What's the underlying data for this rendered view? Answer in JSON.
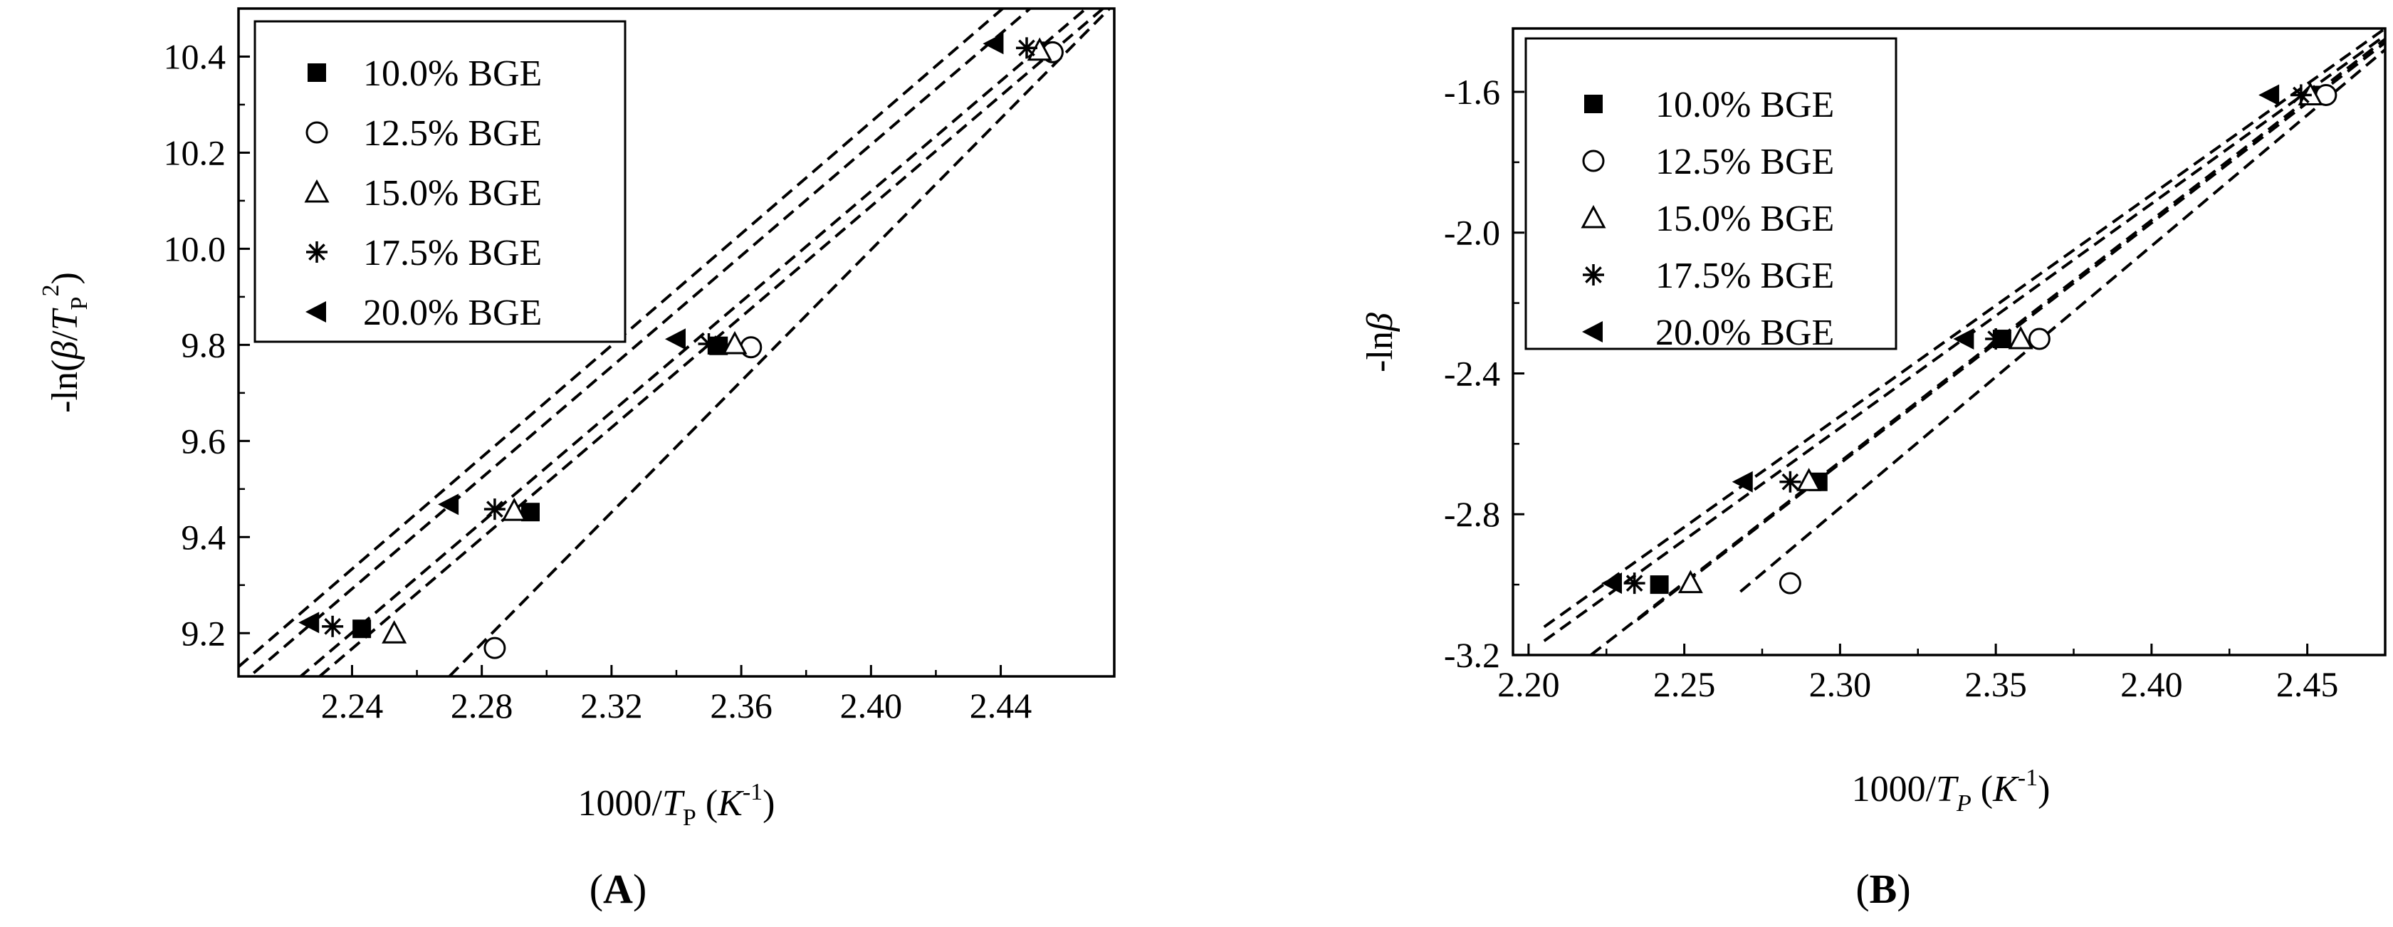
{
  "chart_data": [
    {
      "type": "scatter",
      "panel_label": "A",
      "ylabel_parts": [
        "-ln(",
        "β",
        "/",
        "T",
        "P",
        "2",
        ")"
      ],
      "xlabel_parts": [
        "1000/",
        "T",
        "P",
        " (",
        "K",
        "-1",
        ")"
      ],
      "xlim": [
        2.205,
        2.475
      ],
      "ylim": [
        9.11,
        10.5
      ],
      "xticks": [
        "2.24",
        "2.28",
        "2.32",
        "2.36",
        "2.40",
        "2.44"
      ],
      "yticks": [
        "9.2",
        "9.4",
        "9.6",
        "9.8",
        "10.0",
        "10.2",
        "10.4"
      ],
      "legend_position": "top-left",
      "series": [
        {
          "name": "10.0% BGE",
          "marker": "square-filled",
          "points": [
            [
              2.243,
              9.209
            ],
            [
              2.295,
              9.452
            ],
            [
              2.353,
              9.798
            ],
            [
              2.454,
              10.412
            ]
          ],
          "fit": [
            [
              2.205,
              9.0
            ],
            [
              2.475,
              10.55
            ]
          ]
        },
        {
          "name": "12.5% BGE",
          "marker": "circle-open",
          "points": [
            [
              2.284,
              9.169
            ],
            [
              2.363,
              9.795
            ],
            [
              2.456,
              10.409
            ]
          ],
          "fit": [
            [
              2.27,
              9.11
            ],
            [
              2.475,
              10.51
            ]
          ]
        },
        {
          "name": "15.0% BGE",
          "marker": "triangle-open",
          "points": [
            [
              2.253,
              9.2
            ],
            [
              2.29,
              9.455
            ],
            [
              2.358,
              9.802
            ],
            [
              2.452,
              10.413
            ]
          ],
          "fit": [
            [
              2.23,
              9.11
            ],
            [
              2.475,
              10.52
            ]
          ]
        },
        {
          "name": "17.5% BGE",
          "marker": "asterisk",
          "points": [
            [
              2.234,
              9.214
            ],
            [
              2.284,
              9.458
            ],
            [
              2.35,
              9.802
            ],
            [
              2.448,
              10.418
            ]
          ],
          "fit": [
            [
              2.205,
              9.09
            ],
            [
              2.475,
              10.65
            ]
          ]
        },
        {
          "name": "20.0% BGE",
          "marker": "triangle-left-filled",
          "points": [
            [
              2.227,
              9.222
            ],
            [
              2.27,
              9.468
            ],
            [
              2.34,
              9.812
            ],
            [
              2.438,
              10.427
            ]
          ],
          "fit": [
            [
              2.205,
              9.13
            ],
            [
              2.475,
              10.7
            ]
          ]
        }
      ]
    },
    {
      "type": "scatter",
      "panel_label": "B",
      "ylabel_parts": [
        "-ln",
        "β"
      ],
      "xlabel_parts": [
        "1000/",
        "T",
        "P",
        " (",
        "K",
        "-1",
        ")"
      ],
      "xlim": [
        2.195,
        2.475
      ],
      "ylim": [
        -3.2,
        -1.42
      ],
      "xticks": [
        "2.20",
        "2.25",
        "2.30",
        "2.35",
        "2.40",
        "2.45"
      ],
      "yticks": [
        "-3.2",
        "-2.8",
        "-2.4",
        "-2.0",
        "-1.6"
      ],
      "legend_position": "top-left",
      "series": [
        {
          "name": "10.0% BGE",
          "marker": "square-filled",
          "points": [
            [
              2.242,
              -3.0
            ],
            [
              2.293,
              -2.708
            ],
            [
              2.352,
              -2.302
            ],
            [
              2.455,
              -1.609
            ]
          ],
          "fit": [
            [
              2.235,
              -3.1
            ],
            [
              2.475,
              -1.46
            ]
          ]
        },
        {
          "name": "12.5% BGE",
          "marker": "circle-open",
          "points": [
            [
              2.284,
              -2.996
            ],
            [
              2.364,
              -2.302
            ],
            [
              2.456,
              -1.609
            ]
          ],
          "fit": [
            [
              2.268,
              -3.02
            ],
            [
              2.475,
              -1.48
            ]
          ]
        },
        {
          "name": "15.0% BGE",
          "marker": "triangle-open",
          "points": [
            [
              2.252,
              -2.995
            ],
            [
              2.29,
              -2.705
            ],
            [
              2.358,
              -2.302
            ],
            [
              2.451,
              -1.609
            ]
          ],
          "fit": [
            [
              2.22,
              -3.2
            ],
            [
              2.475,
              -1.45
            ]
          ]
        },
        {
          "name": "17.5% BGE",
          "marker": "asterisk",
          "points": [
            [
              2.234,
              -2.996
            ],
            [
              2.284,
              -2.708
            ],
            [
              2.35,
              -2.302
            ],
            [
              2.448,
              -1.609
            ]
          ],
          "fit": [
            [
              2.205,
              -3.16
            ],
            [
              2.475,
              -1.44
            ]
          ]
        },
        {
          "name": "20.0% BGE",
          "marker": "triangle-left-filled",
          "points": [
            [
              2.227,
              -2.996
            ],
            [
              2.269,
              -2.708
            ],
            [
              2.34,
              -2.302
            ],
            [
              2.438,
              -1.609
            ]
          ],
          "fit": [
            [
              2.205,
              -3.12
            ],
            [
              2.475,
              -1.42
            ]
          ]
        }
      ]
    }
  ]
}
